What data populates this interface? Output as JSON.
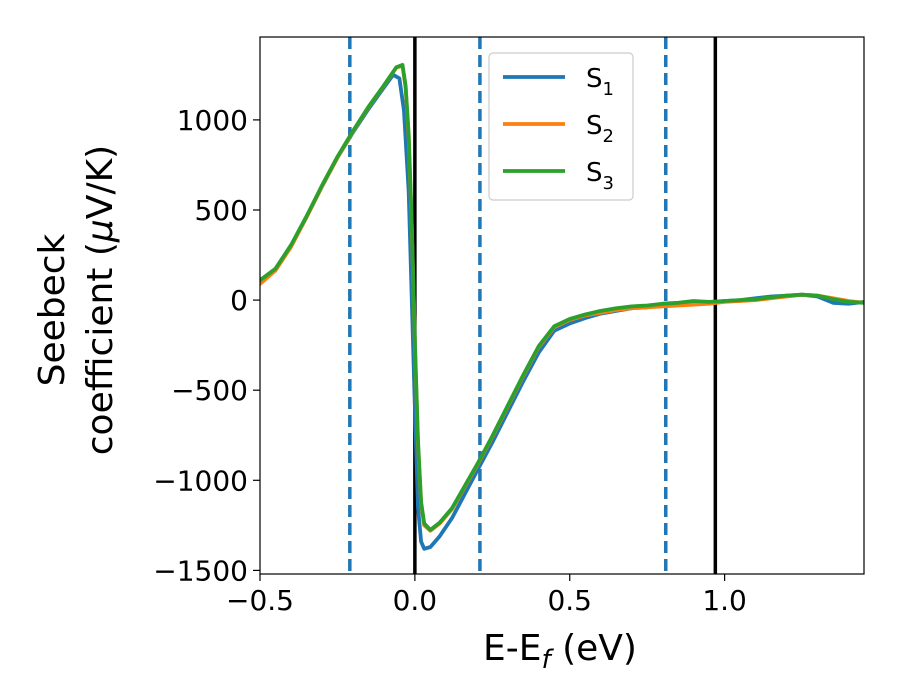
{
  "chart_data": {
    "type": "line",
    "xlabel": "E-E",
    "xlabel_sub": "f",
    "xlabel_unit": " (eV)",
    "ylabel_line1": "Seebeck",
    "ylabel_line2_a": "coefficient  (",
    "ylabel_mu": "μ",
    "ylabel_line2_b": "V/K)",
    "xlim": [
      -0.5,
      1.45
    ],
    "ylim": [
      -1520,
      1460
    ],
    "xticks": [
      -0.5,
      0.0,
      0.5,
      1.0
    ],
    "xtick_labels": [
      "−0.5",
      "0.0",
      "0.5",
      "1.0"
    ],
    "yticks": [
      -1500,
      -1000,
      -500,
      0,
      500,
      1000
    ],
    "ytick_labels": [
      "−1500",
      "−1000",
      "−500",
      "0",
      "500",
      "1000"
    ],
    "grid": false,
    "legend_position": "top-center",
    "vlines_solid": [
      0.0,
      0.97
    ],
    "vlines_dashed": [
      -0.21,
      0.21,
      0.81
    ],
    "vline_solid_color": "#000000",
    "vline_dashed_color": "#1f77b4",
    "series": [
      {
        "name": "S",
        "sub": "1",
        "color": "#1f77b4",
        "points": [
          [
            -0.5,
            100
          ],
          [
            -0.45,
            170
          ],
          [
            -0.4,
            300
          ],
          [
            -0.35,
            460
          ],
          [
            -0.3,
            630
          ],
          [
            -0.25,
            790
          ],
          [
            -0.2,
            930
          ],
          [
            -0.15,
            1060
          ],
          [
            -0.1,
            1180
          ],
          [
            -0.07,
            1250
          ],
          [
            -0.05,
            1230
          ],
          [
            -0.035,
            1050
          ],
          [
            -0.02,
            600
          ],
          [
            -0.01,
            0
          ],
          [
            0.0,
            -600
          ],
          [
            0.01,
            -1150
          ],
          [
            0.02,
            -1340
          ],
          [
            0.03,
            -1380
          ],
          [
            0.05,
            -1370
          ],
          [
            0.08,
            -1310
          ],
          [
            0.12,
            -1210
          ],
          [
            0.16,
            -1080
          ],
          [
            0.2,
            -950
          ],
          [
            0.25,
            -790
          ],
          [
            0.3,
            -620
          ],
          [
            0.35,
            -450
          ],
          [
            0.4,
            -290
          ],
          [
            0.45,
            -170
          ],
          [
            0.5,
            -130
          ],
          [
            0.55,
            -100
          ],
          [
            0.6,
            -75
          ],
          [
            0.65,
            -60
          ],
          [
            0.7,
            -45
          ],
          [
            0.75,
            -40
          ],
          [
            0.8,
            -28
          ],
          [
            0.85,
            -25
          ],
          [
            0.9,
            -20
          ],
          [
            0.95,
            -15
          ],
          [
            1.0,
            -5
          ],
          [
            1.05,
            0
          ],
          [
            1.1,
            10
          ],
          [
            1.15,
            20
          ],
          [
            1.2,
            25
          ],
          [
            1.25,
            30
          ],
          [
            1.3,
            20
          ],
          [
            1.35,
            -15
          ],
          [
            1.4,
            -20
          ],
          [
            1.45,
            -10
          ]
        ]
      },
      {
        "name": "S",
        "sub": "2",
        "color": "#ff7f0e",
        "points": [
          [
            -0.5,
            90
          ],
          [
            -0.45,
            165
          ],
          [
            -0.4,
            295
          ],
          [
            -0.35,
            460
          ],
          [
            -0.3,
            630
          ],
          [
            -0.25,
            790
          ],
          [
            -0.2,
            935
          ],
          [
            -0.15,
            1070
          ],
          [
            -0.1,
            1190
          ],
          [
            -0.06,
            1290
          ],
          [
            -0.04,
            1300
          ],
          [
            -0.03,
            1180
          ],
          [
            -0.02,
            900
          ],
          [
            -0.01,
            400
          ],
          [
            0.0,
            -250
          ],
          [
            0.01,
            -800
          ],
          [
            0.02,
            -1130
          ],
          [
            0.03,
            -1250
          ],
          [
            0.05,
            -1280
          ],
          [
            0.08,
            -1240
          ],
          [
            0.12,
            -1160
          ],
          [
            0.16,
            -1040
          ],
          [
            0.2,
            -920
          ],
          [
            0.25,
            -760
          ],
          [
            0.3,
            -590
          ],
          [
            0.35,
            -420
          ],
          [
            0.4,
            -260
          ],
          [
            0.45,
            -150
          ],
          [
            0.5,
            -110
          ],
          [
            0.55,
            -85
          ],
          [
            0.6,
            -70
          ],
          [
            0.65,
            -55
          ],
          [
            0.7,
            -45
          ],
          [
            0.75,
            -40
          ],
          [
            0.8,
            -35
          ],
          [
            0.85,
            -30
          ],
          [
            0.9,
            -25
          ],
          [
            0.95,
            -20
          ],
          [
            1.0,
            -10
          ],
          [
            1.05,
            -5
          ],
          [
            1.1,
            0
          ],
          [
            1.15,
            10
          ],
          [
            1.2,
            20
          ],
          [
            1.25,
            30
          ],
          [
            1.3,
            25
          ],
          [
            1.35,
            10
          ],
          [
            1.4,
            -5
          ],
          [
            1.45,
            -15
          ]
        ]
      },
      {
        "name": "S",
        "sub": "3",
        "color": "#2ca02c",
        "points": [
          [
            -0.5,
            110
          ],
          [
            -0.45,
            175
          ],
          [
            -0.4,
            305
          ],
          [
            -0.35,
            465
          ],
          [
            -0.3,
            635
          ],
          [
            -0.25,
            795
          ],
          [
            -0.2,
            938
          ],
          [
            -0.15,
            1072
          ],
          [
            -0.1,
            1192
          ],
          [
            -0.06,
            1292
          ],
          [
            -0.04,
            1305
          ],
          [
            -0.03,
            1190
          ],
          [
            -0.02,
            920
          ],
          [
            -0.01,
            420
          ],
          [
            0.0,
            -230
          ],
          [
            0.01,
            -780
          ],
          [
            0.02,
            -1120
          ],
          [
            0.03,
            -1240
          ],
          [
            0.05,
            -1275
          ],
          [
            0.08,
            -1235
          ],
          [
            0.12,
            -1155
          ],
          [
            0.16,
            -1035
          ],
          [
            0.2,
            -915
          ],
          [
            0.25,
            -755
          ],
          [
            0.3,
            -585
          ],
          [
            0.35,
            -415
          ],
          [
            0.4,
            -255
          ],
          [
            0.45,
            -145
          ],
          [
            0.5,
            -105
          ],
          [
            0.55,
            -80
          ],
          [
            0.6,
            -60
          ],
          [
            0.65,
            -45
          ],
          [
            0.7,
            -35
          ],
          [
            0.75,
            -30
          ],
          [
            0.8,
            -20
          ],
          [
            0.85,
            -15
          ],
          [
            0.9,
            -5
          ],
          [
            0.95,
            -10
          ],
          [
            1.0,
            -5
          ],
          [
            1.05,
            0
          ],
          [
            1.1,
            5
          ],
          [
            1.15,
            15
          ],
          [
            1.2,
            25
          ],
          [
            1.25,
            30
          ],
          [
            1.3,
            25
          ],
          [
            1.35,
            5
          ],
          [
            1.4,
            -10
          ],
          [
            1.45,
            -15
          ]
        ]
      }
    ]
  }
}
